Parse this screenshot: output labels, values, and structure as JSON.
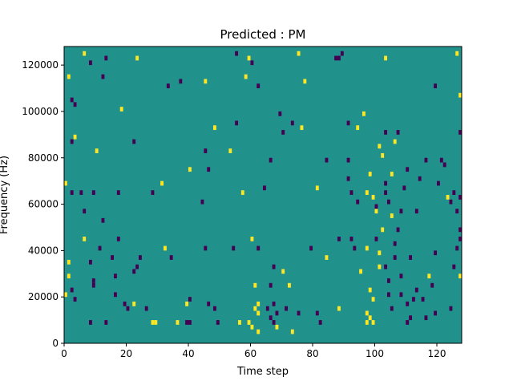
{
  "chart_data": {
    "type": "heatmap",
    "title": "Predicted : PM",
    "xlabel": "Time step",
    "ylabel": "Frequency (Hz)",
    "xlim": [
      0,
      128
    ],
    "ylim": [
      0,
      128000
    ],
    "x_ticks": [
      0,
      20,
      40,
      60,
      80,
      100,
      120
    ],
    "x_tick_labels": [
      "0",
      "20",
      "40",
      "60",
      "80",
      "100",
      "120"
    ],
    "y_ticks": [
      0,
      20000,
      40000,
      60000,
      80000,
      100000,
      120000
    ],
    "y_tick_labels": [
      "0",
      "20000",
      "40000",
      "60000",
      "80000",
      "100000",
      "120000"
    ],
    "grid": false,
    "legend": "none",
    "colormap": {
      "background_value": 0,
      "background_color": "#21918c",
      "high_value": 1,
      "high_color": "#fde725",
      "low_value": -1,
      "low_color": "#440154"
    },
    "cell_size": {
      "time_steps": 1,
      "frequency_hz": 2000
    },
    "cells_high": [
      [
        6,
        124000
      ],
      [
        23,
        122000
      ],
      [
        59,
        122000
      ],
      [
        75,
        124000
      ],
      [
        103,
        122000
      ],
      [
        126,
        124000
      ],
      [
        1,
        114000
      ],
      [
        45,
        112000
      ],
      [
        58,
        114000
      ],
      [
        77,
        112000
      ],
      [
        127,
        106000
      ],
      [
        18,
        100000
      ],
      [
        96,
        98000
      ],
      [
        48,
        92000
      ],
      [
        76,
        92000
      ],
      [
        94,
        92000
      ],
      [
        3,
        88000
      ],
      [
        106,
        86000
      ],
      [
        10,
        82000
      ],
      [
        53,
        82000
      ],
      [
        102,
        80000
      ],
      [
        101,
        84000
      ],
      [
        40,
        74000
      ],
      [
        98,
        72000
      ],
      [
        105,
        72000
      ],
      [
        0,
        68000
      ],
      [
        97,
        64000
      ],
      [
        99,
        62000
      ],
      [
        31,
        68000
      ],
      [
        57,
        64000
      ],
      [
        81,
        66000
      ],
      [
        123,
        62000
      ],
      [
        100,
        56000
      ],
      [
        102,
        48000
      ],
      [
        105,
        54000
      ],
      [
        6,
        44000
      ],
      [
        60,
        44000
      ],
      [
        97,
        40000
      ],
      [
        32,
        40000
      ],
      [
        101,
        38000
      ],
      [
        101,
        32000
      ],
      [
        95,
        30000
      ],
      [
        84,
        36000
      ],
      [
        1,
        34000
      ],
      [
        70,
        30000
      ],
      [
        117,
        28000
      ],
      [
        1,
        28000
      ],
      [
        61,
        24000
      ],
      [
        72,
        24000
      ],
      [
        127,
        28000
      ],
      [
        0,
        20000
      ],
      [
        98,
        22000
      ],
      [
        99,
        18000
      ],
      [
        62,
        16000
      ],
      [
        61,
        14000
      ],
      [
        62,
        12000
      ],
      [
        97,
        12000
      ],
      [
        98,
        10000
      ],
      [
        99,
        8000
      ],
      [
        97,
        8000
      ],
      [
        22,
        16000
      ],
      [
        39,
        16000
      ],
      [
        88,
        14000
      ],
      [
        28,
        8000
      ],
      [
        29,
        8000
      ],
      [
        36,
        8000
      ],
      [
        56,
        8000
      ],
      [
        59,
        8000
      ],
      [
        60,
        6000
      ],
      [
        62,
        4000
      ],
      [
        73,
        4000
      ],
      [
        68,
        6000
      ]
    ],
    "cells_low": [
      [
        8,
        120000
      ],
      [
        13,
        122000
      ],
      [
        55,
        124000
      ],
      [
        60,
        120000
      ],
      [
        89,
        124000
      ],
      [
        88,
        122000
      ],
      [
        12,
        114000
      ],
      [
        37,
        112000
      ],
      [
        87,
        122000
      ],
      [
        33,
        110000
      ],
      [
        62,
        110000
      ],
      [
        119,
        110000
      ],
      [
        2,
        104000
      ],
      [
        3,
        102000
      ],
      [
        69,
        98000
      ],
      [
        73,
        94000
      ],
      [
        55,
        94000
      ],
      [
        91,
        94000
      ],
      [
        70,
        90000
      ],
      [
        103,
        90000
      ],
      [
        107,
        90000
      ],
      [
        127,
        90000
      ],
      [
        2,
        86000
      ],
      [
        22,
        86000
      ],
      [
        45,
        82000
      ],
      [
        66,
        78000
      ],
      [
        84,
        78000
      ],
      [
        91,
        78000
      ],
      [
        116,
        78000
      ],
      [
        121,
        78000
      ],
      [
        46,
        74000
      ],
      [
        110,
        74000
      ],
      [
        122,
        76000
      ],
      [
        91,
        70000
      ],
      [
        103,
        68000
      ],
      [
        114,
        70000
      ],
      [
        2,
        64000
      ],
      [
        5,
        64000
      ],
      [
        9,
        64000
      ],
      [
        17,
        64000
      ],
      [
        28,
        64000
      ],
      [
        64,
        66000
      ],
      [
        92,
        64000
      ],
      [
        103,
        64000
      ],
      [
        109,
        66000
      ],
      [
        120,
        68000
      ],
      [
        125,
        64000
      ],
      [
        127,
        62000
      ],
      [
        6,
        56000
      ],
      [
        12,
        52000
      ],
      [
        44,
        60000
      ],
      [
        94,
        60000
      ],
      [
        100,
        58000
      ],
      [
        104,
        60000
      ],
      [
        108,
        56000
      ],
      [
        113,
        56000
      ],
      [
        124,
        60000
      ],
      [
        126,
        56000
      ],
      [
        17,
        44000
      ],
      [
        11,
        40000
      ],
      [
        45,
        40000
      ],
      [
        62,
        40000
      ],
      [
        79,
        40000
      ],
      [
        127,
        44000
      ],
      [
        107,
        48000
      ],
      [
        127,
        48000
      ],
      [
        92,
        44000
      ],
      [
        88,
        44000
      ],
      [
        106,
        42000
      ],
      [
        100,
        44000
      ],
      [
        8,
        34000
      ],
      [
        15,
        36000
      ],
      [
        24,
        36000
      ],
      [
        34,
        36000
      ],
      [
        54,
        40000
      ],
      [
        93,
        40000
      ],
      [
        106,
        36000
      ],
      [
        111,
        36000
      ],
      [
        119,
        38000
      ],
      [
        126,
        40000
      ],
      [
        125,
        32000
      ],
      [
        9,
        26000
      ],
      [
        16,
        28000
      ],
      [
        23,
        32000
      ],
      [
        67,
        32000
      ],
      [
        103,
        32000
      ],
      [
        108,
        28000
      ],
      [
        2,
        22000
      ],
      [
        9,
        24000
      ],
      [
        22,
        30000
      ],
      [
        66,
        24000
      ],
      [
        104,
        26000
      ],
      [
        118,
        24000
      ],
      [
        3,
        18000
      ],
      [
        16,
        20000
      ],
      [
        40,
        18000
      ],
      [
        67,
        16000
      ],
      [
        104,
        20000
      ],
      [
        112,
        18000
      ],
      [
        19,
        16000
      ],
      [
        20,
        14000
      ],
      [
        26,
        14000
      ],
      [
        46,
        16000
      ],
      [
        48,
        14000
      ],
      [
        65,
        14000
      ],
      [
        66,
        10000
      ],
      [
        68,
        12000
      ],
      [
        71,
        14000
      ],
      [
        81,
        12000
      ],
      [
        105,
        14000
      ],
      [
        110,
        16000
      ],
      [
        115,
        18000
      ],
      [
        113,
        22000
      ],
      [
        108,
        20000
      ],
      [
        124,
        14000
      ],
      [
        119,
        12000
      ],
      [
        8,
        8000
      ],
      [
        13,
        8000
      ],
      [
        39,
        8000
      ],
      [
        40,
        8000
      ],
      [
        49,
        8000
      ],
      [
        67,
        8000
      ],
      [
        75,
        12000
      ],
      [
        82,
        8000
      ],
      [
        110,
        8000
      ],
      [
        111,
        10000
      ],
      [
        116,
        10000
      ]
    ]
  }
}
